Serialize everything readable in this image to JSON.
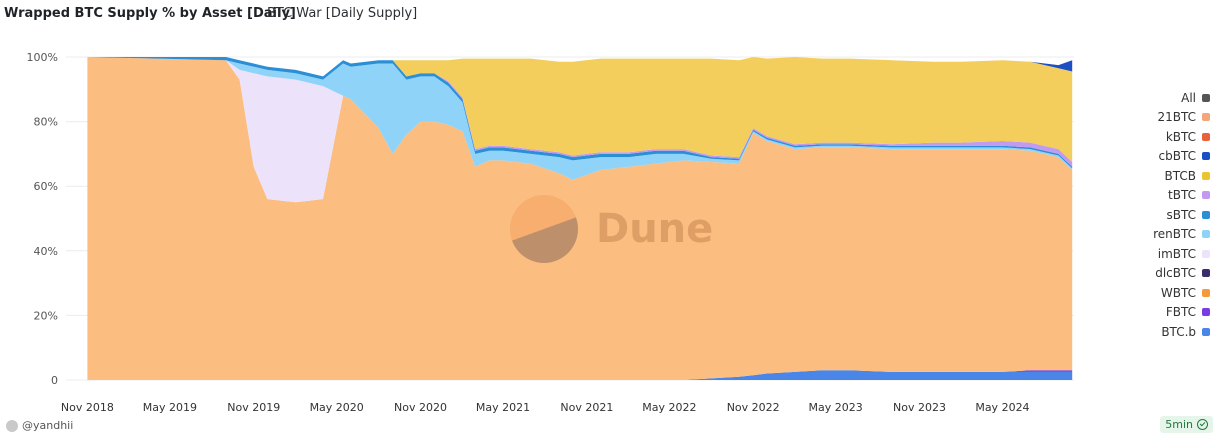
{
  "header": {
    "title": "Wrapped BTC Supply % by Asset [Daily]",
    "tab": "BTC War [Daily Supply]"
  },
  "footer": {
    "author": "@yandhii",
    "refresh": "5min"
  },
  "watermark": "Dune",
  "legend": [
    {
      "label": "All",
      "color": "#555555"
    },
    {
      "label": "21BTC",
      "color": "#f4a57b"
    },
    {
      "label": "kBTC",
      "color": "#e8603c"
    },
    {
      "label": "cbBTC",
      "color": "#1b4fc4"
    },
    {
      "label": "BTCB",
      "color": "#ecc231"
    },
    {
      "label": "tBTC",
      "color": "#c29bf0"
    },
    {
      "label": "sBTC",
      "color": "#2b8fd6"
    },
    {
      "label": "renBTC",
      "color": "#8fd3f8"
    },
    {
      "label": "imBTC",
      "color": "#ece3fb"
    },
    {
      "label": "dlcBTC",
      "color": "#3b2a6e"
    },
    {
      "label": "WBTC",
      "color": "#f49a3a"
    },
    {
      "label": "FBTC",
      "color": "#7a3be0"
    },
    {
      "label": "BTC.b",
      "color": "#4a86e8"
    }
  ],
  "chart_data": {
    "type": "area",
    "stacked": "percent",
    "title": "Wrapped BTC Supply % by Asset [Daily]",
    "x_tick_labels": [
      "Nov 2018",
      "May 2019",
      "Nov 2019",
      "May 2020",
      "Nov 2020",
      "May 2021",
      "Nov 2021",
      "May 2022",
      "Nov 2022",
      "May 2023",
      "Nov 2023",
      "May 2024"
    ],
    "y_tick_labels": [
      "0",
      "20%",
      "40%",
      "60%",
      "80%",
      "100%"
    ],
    "ylim": [
      0,
      100
    ],
    "x": [
      "2018-11-01",
      "2019-09-01",
      "2019-10-01",
      "2019-11-01",
      "2019-12-01",
      "2020-02-01",
      "2020-04-01",
      "2020-05-15",
      "2020-06-01",
      "2020-08-01",
      "2020-09-01",
      "2020-10-01",
      "2020-11-01",
      "2020-12-01",
      "2021-01-01",
      "2021-02-01",
      "2021-03-01",
      "2021-04-01",
      "2021-05-01",
      "2021-07-01",
      "2021-09-01",
      "2021-10-01",
      "2021-12-01",
      "2022-02-01",
      "2022-04-01",
      "2022-06-01",
      "2022-08-01",
      "2022-10-01",
      "2022-11-01",
      "2022-12-01",
      "2023-02-01",
      "2023-04-01",
      "2023-06-01",
      "2023-09-01",
      "2023-12-01",
      "2024-02-01",
      "2024-05-01",
      "2024-07-01",
      "2024-09-01",
      "2024-10-01"
    ],
    "series": [
      {
        "name": "BTC.b",
        "color": "#4a86e8",
        "values": [
          0,
          0,
          0,
          0,
          0,
          0,
          0,
          0,
          0,
          0,
          0,
          0,
          0,
          0,
          0,
          0,
          0,
          0,
          0,
          0,
          0,
          0,
          0,
          0,
          0,
          0,
          0.5,
          1,
          1.5,
          2,
          2.5,
          3,
          3,
          2.5,
          2.5,
          2.5,
          2.5,
          2.5,
          2.5,
          2.5
        ]
      },
      {
        "name": "FBTC",
        "color": "#7a3be0",
        "values": [
          0,
          0,
          0,
          0,
          0,
          0,
          0,
          0,
          0,
          0,
          0,
          0,
          0,
          0,
          0,
          0,
          0,
          0,
          0,
          0,
          0,
          0,
          0,
          0,
          0,
          0,
          0,
          0,
          0,
          0,
          0,
          0,
          0,
          0,
          0,
          0,
          0,
          0.5,
          0.5,
          0.5
        ]
      },
      {
        "name": "WBTC",
        "color": "#fbbd80",
        "values": [
          100,
          99,
          93,
          66,
          56,
          55,
          56,
          88,
          87,
          78,
          70,
          76,
          80,
          80,
          79,
          77,
          66,
          68,
          68,
          67,
          64,
          62,
          65,
          66,
          67,
          68,
          67,
          66,
          75,
          72,
          69,
          69,
          69,
          69,
          69,
          69,
          69,
          68,
          66,
          62
        ]
      },
      {
        "name": "imBTC",
        "color": "#ece3fb",
        "values": [
          0,
          0,
          3,
          29,
          38,
          38,
          35,
          0,
          0,
          0,
          0,
          0,
          0,
          0,
          0,
          0,
          0,
          0,
          0,
          0,
          0,
          0,
          0,
          0,
          0,
          0,
          0,
          0,
          0,
          0,
          0,
          0,
          0,
          0,
          0,
          0,
          0,
          0,
          0,
          0
        ]
      },
      {
        "name": "renBTC",
        "color": "#8fd3f8",
        "values": [
          0,
          0,
          2,
          2,
          2,
          2,
          2,
          10,
          10,
          20,
          28,
          17,
          14,
          14,
          12,
          9,
          4,
          3,
          3,
          3,
          5,
          6,
          4,
          3,
          3,
          2,
          1,
          1,
          0.5,
          0.5,
          0.5,
          0.5,
          0.5,
          0.5,
          0.5,
          0.5,
          0.5,
          0.5,
          0.5,
          0.5
        ]
      },
      {
        "name": "sBTC",
        "color": "#2b8fd6",
        "values": [
          0,
          1,
          1,
          1,
          1,
          1,
          1,
          1,
          1,
          1,
          1,
          1,
          1,
          1,
          1,
          1,
          1,
          1,
          1,
          1,
          1,
          1,
          1,
          1,
          1,
          1,
          0.5,
          0.5,
          0.5,
          0.5,
          0.5,
          0.5,
          0.5,
          0.5,
          0.5,
          0.5,
          0.5,
          0.5,
          0.5,
          0.5
        ]
      },
      {
        "name": "tBTC",
        "color": "#c29bf0",
        "values": [
          0,
          0,
          0,
          0,
          0,
          0,
          0,
          0,
          0,
          0,
          0,
          0,
          0,
          0,
          0.5,
          0.5,
          0.5,
          0.5,
          0.5,
          0.5,
          0.5,
          0.5,
          0.5,
          0.5,
          0.5,
          0.5,
          0.5,
          0.5,
          0.5,
          0.5,
          0.5,
          0.5,
          0.5,
          0.5,
          1,
          1,
          1.5,
          1.5,
          1.5,
          1.5
        ]
      },
      {
        "name": "BTCB",
        "color": "#f4ce5c",
        "values": [
          0,
          0,
          0,
          0,
          0,
          0,
          0,
          0,
          0,
          0,
          0,
          5,
          4,
          4,
          6.5,
          12,
          28,
          27,
          27,
          28,
          28,
          29,
          29,
          29,
          28,
          28,
          30,
          30,
          22,
          24,
          27,
          26,
          26,
          26,
          25,
          25,
          25,
          25,
          25,
          28
        ]
      },
      {
        "name": "cbBTC",
        "color": "#1b4fc4",
        "values": [
          0,
          0,
          0,
          0,
          0,
          0,
          0,
          0,
          0,
          0,
          0,
          0,
          0,
          0,
          0,
          0,
          0,
          0,
          0,
          0,
          0,
          0,
          0,
          0,
          0,
          0,
          0,
          0,
          0,
          0,
          0,
          0,
          0,
          0,
          0,
          0,
          0,
          0,
          1,
          3.5
        ]
      },
      {
        "name": "21BTC",
        "color": "#f4a57b",
        "values": [
          0,
          0,
          0,
          0,
          0,
          0,
          0,
          0,
          0,
          0,
          0,
          0,
          0,
          0,
          0,
          0,
          0,
          0,
          0,
          0,
          0,
          0,
          0,
          0,
          0,
          0,
          0,
          0,
          0,
          0,
          0,
          0,
          0,
          0,
          0,
          0,
          0,
          0,
          0,
          0
        ]
      }
    ]
  }
}
